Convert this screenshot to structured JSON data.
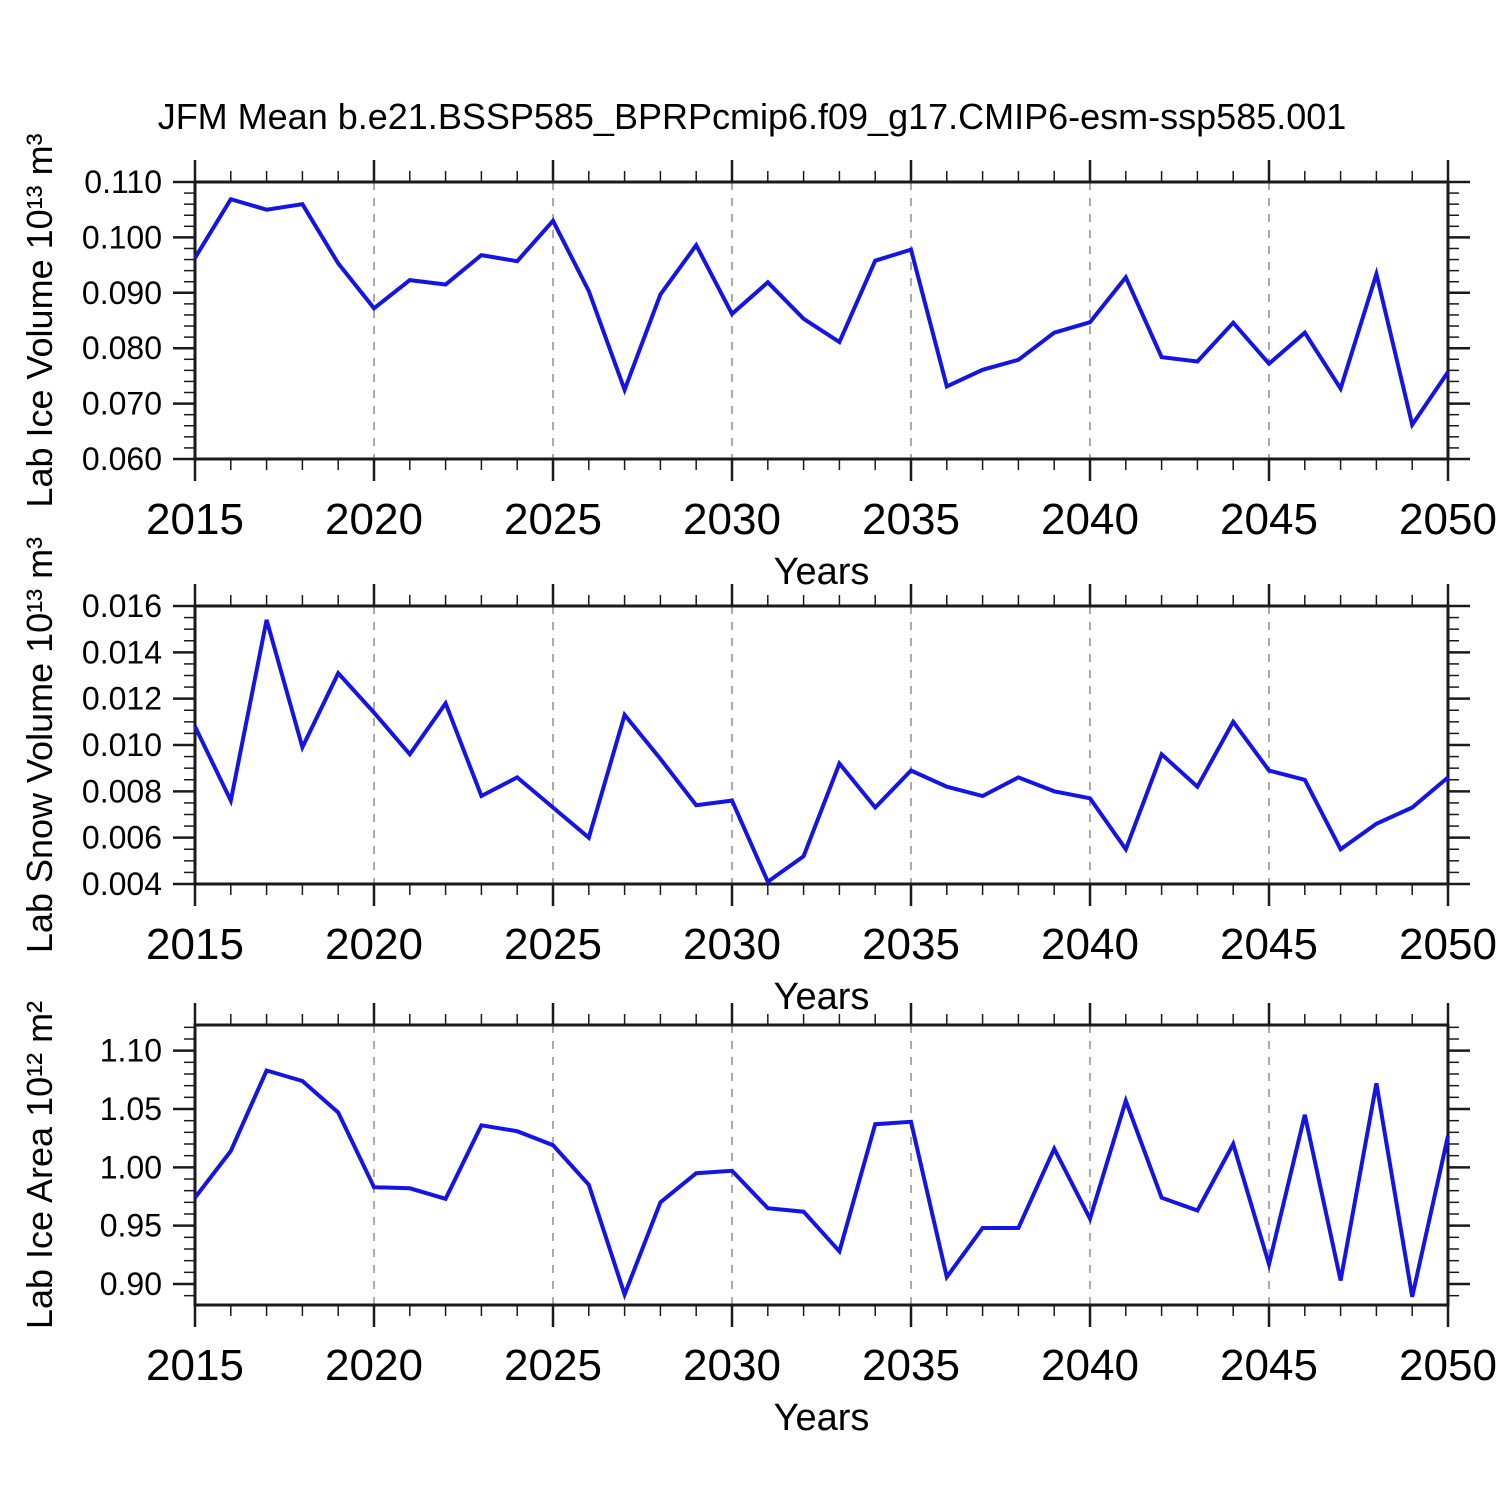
{
  "title": "JFM Mean b.e21.BSSP585_BPRPcmip6.f09_g17.CMIP6-esm-ssp585.001",
  "colors": {
    "line": "#1414e6",
    "frame": "#1a1a1a",
    "grid": "#aaaaaa",
    "text": "#000000"
  },
  "chart_data": [
    {
      "type": "line",
      "name": "lab-ice-volume",
      "ylabel": "Lab Ice Volume 10¹³ m³",
      "xlabel": "Years",
      "xlim": [
        2015,
        2050
      ],
      "ylim": [
        0.06,
        0.11
      ],
      "x": [
        2015,
        2016,
        2017,
        2018,
        2019,
        2020,
        2021,
        2022,
        2023,
        2024,
        2025,
        2026,
        2027,
        2028,
        2029,
        2030,
        2031,
        2032,
        2033,
        2034,
        2035,
        2036,
        2037,
        2038,
        2039,
        2040,
        2041,
        2042,
        2043,
        2044,
        2045,
        2046,
        2047,
        2048,
        2049,
        2050
      ],
      "values": [
        0.0963,
        0.1069,
        0.105,
        0.106,
        0.0953,
        0.0872,
        0.0923,
        0.0915,
        0.0968,
        0.0957,
        0.103,
        0.0903,
        0.0725,
        0.0897,
        0.0986,
        0.0862,
        0.0919,
        0.0853,
        0.0811,
        0.0958,
        0.0978,
        0.0731,
        0.0761,
        0.0779,
        0.0828,
        0.0847,
        0.0928,
        0.0784,
        0.0776,
        0.0846,
        0.0772,
        0.0828,
        0.0727,
        0.0934,
        0.0662,
        0.0757
      ],
      "yticks": [
        0.06,
        0.07,
        0.08,
        0.09,
        0.1,
        0.11
      ],
      "ytick_labels": [
        "0.060",
        "0.070",
        "0.080",
        "0.090",
        "0.100",
        "0.110"
      ],
      "ytick_minor_step": 0.002,
      "xticks": [
        2015,
        2020,
        2025,
        2030,
        2035,
        2040,
        2045,
        2050
      ],
      "xtick_labels": [
        "2015",
        "2020",
        "2025",
        "2030",
        "2035",
        "2040",
        "2045",
        "2050"
      ],
      "xtick_minor_step": 1,
      "grid_x": [
        2020,
        2025,
        2030,
        2035,
        2040,
        2045
      ],
      "grid_style": "vertical-dashed"
    },
    {
      "type": "line",
      "name": "lab-snow-volume",
      "ylabel": "Lab Snow Volume 10¹³ m³",
      "xlabel": "Years",
      "xlim": [
        2015,
        2050
      ],
      "ylim": [
        0.004,
        0.016
      ],
      "x": [
        2015,
        2016,
        2017,
        2018,
        2019,
        2020,
        2021,
        2022,
        2023,
        2024,
        2025,
        2026,
        2027,
        2028,
        2029,
        2030,
        2031,
        2032,
        2033,
        2034,
        2035,
        2036,
        2037,
        2038,
        2039,
        2040,
        2041,
        2042,
        2043,
        2044,
        2045,
        2046,
        2047,
        2048,
        2049,
        2050
      ],
      "values": [
        0.0108,
        0.0076,
        0.0154,
        0.0099,
        0.0131,
        0.0114,
        0.0096,
        0.0118,
        0.0078,
        0.0086,
        0.0073,
        0.006,
        0.0113,
        0.0094,
        0.0074,
        0.0076,
        0.0041,
        0.0052,
        0.0092,
        0.0073,
        0.0089,
        0.0082,
        0.0078,
        0.0086,
        0.008,
        0.0077,
        0.0055,
        0.0096,
        0.0082,
        0.011,
        0.0089,
        0.0085,
        0.0055,
        0.0066,
        0.0073,
        0.0086
      ],
      "yticks": [
        0.004,
        0.006,
        0.008,
        0.01,
        0.012,
        0.014,
        0.016
      ],
      "ytick_labels": [
        "0.004",
        "0.006",
        "0.008",
        "0.010",
        "0.012",
        "0.014",
        "0.016"
      ],
      "ytick_minor_step": 0.0005,
      "xticks": [
        2015,
        2020,
        2025,
        2030,
        2035,
        2040,
        2045,
        2050
      ],
      "xtick_labels": [
        "2015",
        "2020",
        "2025",
        "2030",
        "2035",
        "2040",
        "2045",
        "2050"
      ],
      "xtick_minor_step": 1,
      "grid_x": [
        2020,
        2025,
        2030,
        2035,
        2040,
        2045
      ],
      "grid_style": "vertical-dashed"
    },
    {
      "type": "line",
      "name": "lab-ice-area",
      "ylabel": "Lab Ice Area 10¹² m²",
      "xlabel": "Years",
      "xlim": [
        2015,
        2050
      ],
      "ylim": [
        0.882,
        1.122
      ],
      "x": [
        2015,
        2016,
        2017,
        2018,
        2019,
        2020,
        2021,
        2022,
        2023,
        2024,
        2025,
        2026,
        2027,
        2028,
        2029,
        2030,
        2031,
        2032,
        2033,
        2034,
        2035,
        2036,
        2037,
        2038,
        2039,
        2040,
        2041,
        2042,
        2043,
        2044,
        2045,
        2046,
        2047,
        2048,
        2049,
        2050
      ],
      "values": [
        0.974,
        1.014,
        1.083,
        1.074,
        1.047,
        0.983,
        0.982,
        0.973,
        1.036,
        1.031,
        1.019,
        0.985,
        0.891,
        0.97,
        0.995,
        0.997,
        0.965,
        0.962,
        0.928,
        1.037,
        1.039,
        0.906,
        0.948,
        0.948,
        1.016,
        0.956,
        1.057,
        0.974,
        0.963,
        1.02,
        0.917,
        1.045,
        0.903,
        1.072,
        0.889,
        1.027
      ],
      "yticks": [
        0.9,
        0.95,
        1.0,
        1.05,
        1.1
      ],
      "ytick_labels": [
        "0.90",
        "0.95",
        "1.00",
        "1.05",
        "1.10"
      ],
      "ytick_minor_step": 0.01,
      "xticks": [
        2015,
        2020,
        2025,
        2030,
        2035,
        2040,
        2045,
        2050
      ],
      "xtick_labels": [
        "2015",
        "2020",
        "2025",
        "2030",
        "2035",
        "2040",
        "2045",
        "2050"
      ],
      "xtick_minor_step": 1,
      "grid_x": [
        2020,
        2025,
        2030,
        2035,
        2040,
        2045
      ],
      "grid_style": "vertical-dashed"
    }
  ]
}
